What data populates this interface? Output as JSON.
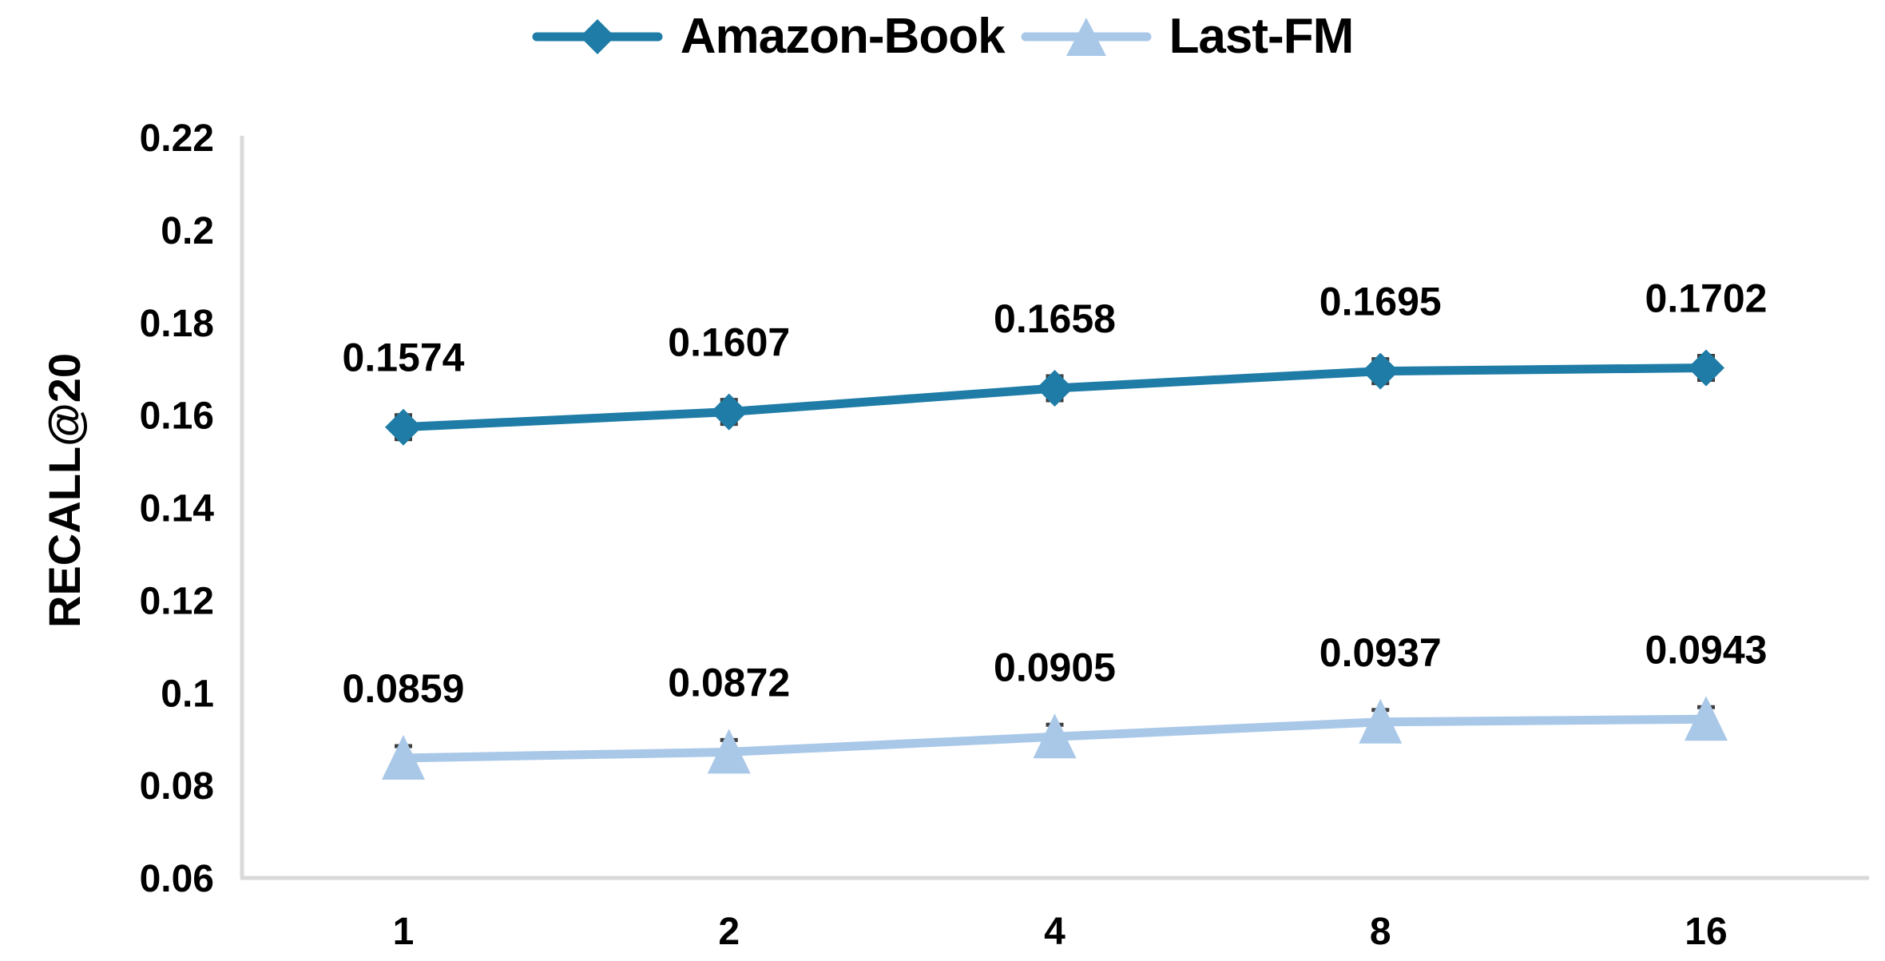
{
  "chart_data": {
    "type": "line",
    "title": "",
    "xlabel": "",
    "ylabel": "RECALL@20",
    "x_categories": [
      "1",
      "2",
      "4",
      "8",
      "16"
    ],
    "ylim": [
      0.06,
      0.22
    ],
    "ytick_labels": [
      "0.22",
      "0.2",
      "0.18",
      "0.16",
      "0.14",
      "0.12",
      "0.1",
      "0.08",
      "0.06"
    ],
    "grid": false,
    "legend_position": "top-center",
    "series": [
      {
        "name": "Amazon-Book",
        "marker": "diamond",
        "color": "#1e7ca6",
        "values": [
          0.1574,
          0.1607,
          0.1658,
          0.1695,
          0.1702
        ],
        "data_labels": [
          "0.1574",
          "0.1607",
          "0.1658",
          "0.1695",
          "0.1702"
        ]
      },
      {
        "name": "Last-FM",
        "marker": "triangle",
        "color": "#a9c8e8",
        "values": [
          0.0859,
          0.0872,
          0.0905,
          0.0937,
          0.0943
        ],
        "data_labels": [
          "0.0859",
          "0.0872",
          "0.0905",
          "0.0937",
          "0.0943"
        ]
      }
    ],
    "colors": {
      "axis_line": "#d9d9d9",
      "label_text": "#000000",
      "error_cap": "#3f3f3f"
    }
  }
}
